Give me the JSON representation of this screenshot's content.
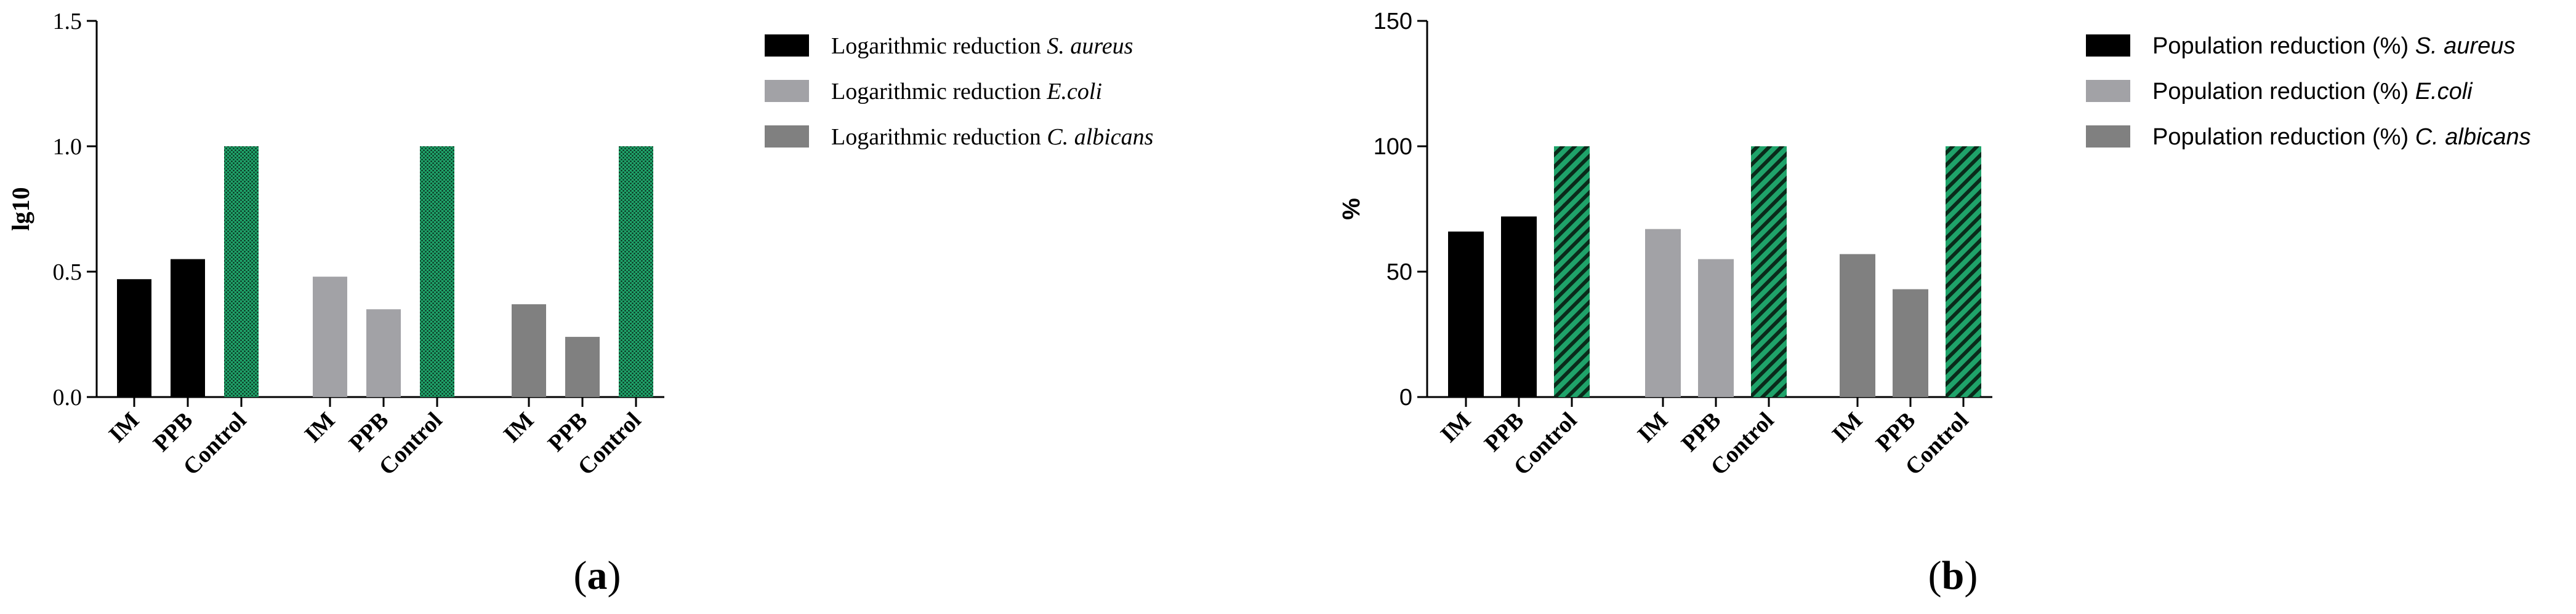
{
  "chart_data": [
    {
      "type": "bar",
      "ylabel": "lg10",
      "ylim": [
        0,
        1.5
      ],
      "yticks": [
        "0.0",
        "0.5",
        "1.0",
        "1.5"
      ],
      "groups": [
        {
          "categories": [
            "IM",
            "PPB",
            "Control"
          ],
          "values": [
            0.47,
            0.55,
            1.0
          ]
        },
        {
          "categories": [
            "IM",
            "PPB",
            "Control"
          ],
          "values": [
            0.48,
            0.35,
            1.0
          ]
        },
        {
          "categories": [
            "IM",
            "PPB",
            "Control"
          ],
          "values": [
            0.37,
            0.24,
            1.0
          ]
        }
      ],
      "series": [
        {
          "name": "Logarithmic reduction ",
          "organism": "S. aureus",
          "color": "#000000"
        },
        {
          "name": "Logarithmic reduction ",
          "organism": "E.coli",
          "color": "#a2a2a6"
        },
        {
          "name": "Logarithmic reduction ",
          "organism": "C. albicans",
          "color": "#808080"
        }
      ],
      "control_color": "#1fa36a",
      "control_pattern": "dots",
      "legend": "right",
      "panel_label": "(a)"
    },
    {
      "type": "bar",
      "ylabel": "%",
      "ylim": [
        0,
        150
      ],
      "yticks": [
        "0",
        "50",
        "100",
        "150"
      ],
      "groups": [
        {
          "categories": [
            "IM",
            "PPB",
            "Control"
          ],
          "values": [
            66,
            72,
            100
          ]
        },
        {
          "categories": [
            "IM",
            "PPB",
            "Control"
          ],
          "values": [
            67,
            55,
            100
          ]
        },
        {
          "categories": [
            "IM",
            "PPB",
            "Control"
          ],
          "values": [
            57,
            43,
            100
          ]
        }
      ],
      "series": [
        {
          "name": "Population reduction (%) ",
          "organism": "S. aureus",
          "color": "#000000"
        },
        {
          "name": "Population reduction (%) ",
          "organism": "E.coli",
          "color": "#a2a2a6"
        },
        {
          "name": "Population reduction (%) ",
          "organism": "C. albicans",
          "color": "#808080"
        }
      ],
      "control_color": "#1fa36a",
      "control_pattern": "diagonal-hatch",
      "legend": "right",
      "panel_label": "(b)"
    }
  ]
}
